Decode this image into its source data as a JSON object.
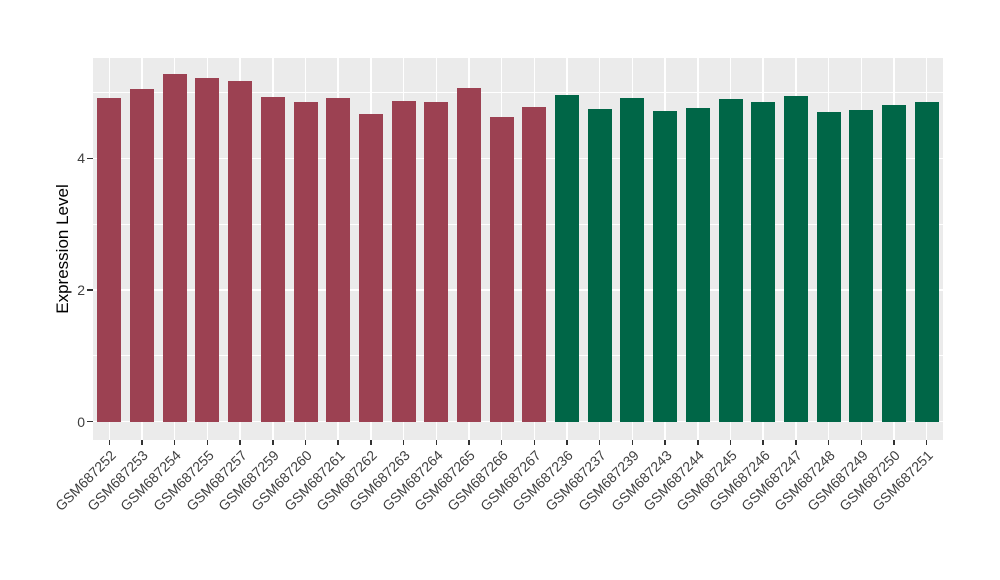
{
  "chart_data": {
    "type": "bar",
    "title": "",
    "xlabel": "",
    "ylabel": "Expression Level",
    "ylim": [
      0,
      5.6
    ],
    "ytick_values": [
      0,
      2,
      4
    ],
    "ytick_labels": [
      "0",
      "2",
      "4"
    ],
    "yminor_values": [
      1,
      3,
      5
    ],
    "grid": "white major and minor horizontal lines, white vertical lines at category centers, on grey panel",
    "legend_position": "none",
    "categories": [
      "GSM687252",
      "GSM687253",
      "GSM687254",
      "GSM687255",
      "GSM687257",
      "GSM687259",
      "GSM687260",
      "GSM687261",
      "GSM687262",
      "GSM687263",
      "GSM687264",
      "GSM687265",
      "GSM687266",
      "GSM687267",
      "GSM687236",
      "GSM687237",
      "GSM687239",
      "GSM687243",
      "GSM687244",
      "GSM687245",
      "GSM687246",
      "GSM687247",
      "GSM687248",
      "GSM687249",
      "GSM687250",
      "GSM687251"
    ],
    "values": [
      4.92,
      5.05,
      5.28,
      5.22,
      5.18,
      4.93,
      4.86,
      4.92,
      4.67,
      4.87,
      4.86,
      5.07,
      4.62,
      4.78,
      4.96,
      4.75,
      4.91,
      4.72,
      4.77,
      4.9,
      4.86,
      4.94,
      4.71,
      4.74,
      4.81,
      4.86
    ],
    "bar_groups": [
      0,
      0,
      0,
      0,
      0,
      0,
      0,
      0,
      0,
      0,
      0,
      0,
      0,
      0,
      1,
      1,
      1,
      1,
      1,
      1,
      1,
      1,
      1,
      1,
      1,
      1
    ]
  },
  "colors": {
    "group_colors": [
      "#9c4152",
      "#006647"
    ],
    "panel_background": "#ebebeb",
    "grid": "#ffffff",
    "tick_text": "#404040",
    "axis_title_text": "#000000",
    "tick_mark": "#333333",
    "figure_background": "#ffffff"
  }
}
